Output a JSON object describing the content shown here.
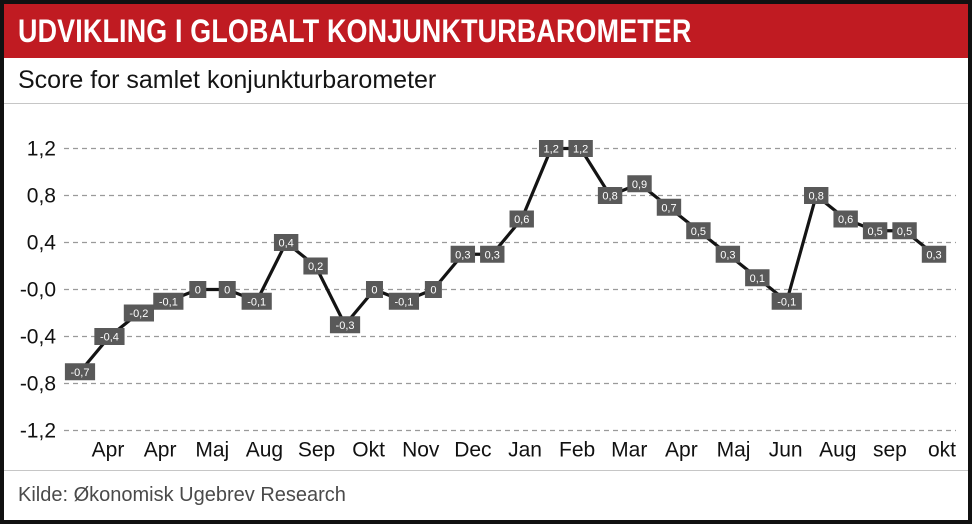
{
  "header": {
    "title": "UDVIKLING I GLOBALT KONJUNKTURBAROMETER",
    "background_color": "#c01b22",
    "text_color": "#ffffff"
  },
  "subtitle": {
    "text": "Score for samlet konjunkturbarometer"
  },
  "footer": {
    "source": "Kilde: Økonomisk Ugebrev Research"
  },
  "chart_data": {
    "type": "line",
    "title": "Udvikling i globalt konjunkturbarometer",
    "subtitle": "Score for samlet konjunkturbarometer",
    "x_labels": [
      "Apr",
      "Apr",
      "Maj",
      "Aug",
      "Sep",
      "Okt",
      "Nov",
      "Dec",
      "Jan",
      "Feb",
      "Mar",
      "Apr",
      "Maj",
      "Jun",
      "Aug",
      "sep",
      "okt"
    ],
    "values": [
      -0.7,
      -0.4,
      -0.2,
      -0.1,
      0,
      0,
      -0.1,
      0.4,
      0.2,
      -0.3,
      0,
      -0.1,
      0,
      0.3,
      0.3,
      0.6,
      1.2,
      1.2,
      0.8,
      0.9,
      0.7,
      0.5,
      0.3,
      0.1,
      -0.1,
      0.8,
      0.6,
      0.5,
      0.5,
      0.3
    ],
    "point_labels": [
      "-0,7",
      "-0,4",
      "-0,2",
      "-0,1",
      "0",
      "0",
      "-0,1",
      "0,4",
      "0,2",
      "-0,3",
      "0",
      "-0,1",
      "0",
      "0,3",
      "0,3",
      "0,6",
      "1,2",
      "1,2",
      "0,8",
      "0,9",
      "0,7",
      "0,5",
      "0,3",
      "0,1",
      "-0,1",
      "0,8",
      "0,6",
      "0,5",
      "0,5",
      "0,3"
    ],
    "y_ticks": [
      "1,2",
      "0,8",
      "0,4",
      "-0,0",
      "-0,4",
      "-0,8",
      "-1,2"
    ],
    "y_tick_values": [
      1.2,
      0.8,
      0.4,
      0,
      -0.4,
      -0.8,
      -1.2
    ],
    "ylim": [
      -1.2,
      1.2
    ],
    "grid": "dashed horizontal",
    "legend": "none",
    "line_color": "#141414",
    "label_box_color": "#595959",
    "label_text_color": "#ffffff",
    "grid_color": "#9a9a9a",
    "axis_text_color": "#111111"
  }
}
